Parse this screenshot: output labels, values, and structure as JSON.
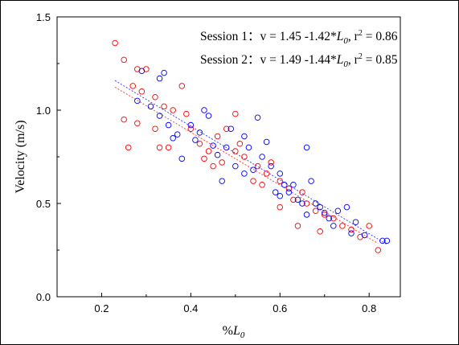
{
  "chart_data": {
    "type": "scatter",
    "xlabel": "%L0",
    "ylabel": "Velocity (m/s)",
    "xlim": [
      0.1,
      0.87
    ],
    "ylim": [
      0.0,
      1.5
    ],
    "x_ticks": [
      "0.2",
      "0.4",
      "0.6",
      "0.8"
    ],
    "y_ticks": [
      "0.0",
      "0.5",
      "1.0",
      "1.5"
    ],
    "grid": false,
    "annotations": [
      "Session 1：v = 1.45 -1.42*L0, r2 = 0.86",
      "Session 2：v = 1.49 -1.44*L0, r2 = 0.85"
    ],
    "series": [
      {
        "color": "#ff0000",
        "marker": "open-circle",
        "fit": {
          "intercept": 1.45,
          "slope": -1.42,
          "x_range": [
            0.23,
            0.82
          ]
        },
        "points": [
          [
            0.23,
            1.36
          ],
          [
            0.25,
            1.27
          ],
          [
            0.28,
            1.22
          ],
          [
            0.3,
            1.22
          ],
          [
            0.27,
            1.13
          ],
          [
            0.29,
            1.1
          ],
          [
            0.32,
            1.07
          ],
          [
            0.34,
            1.02
          ],
          [
            0.36,
            1.0
          ],
          [
            0.25,
            0.95
          ],
          [
            0.28,
            0.93
          ],
          [
            0.32,
            0.9
          ],
          [
            0.26,
            0.8
          ],
          [
            0.33,
            0.8
          ],
          [
            0.39,
            0.98
          ],
          [
            0.38,
            1.13
          ],
          [
            0.4,
            0.9
          ],
          [
            0.42,
            0.82
          ],
          [
            0.44,
            0.78
          ],
          [
            0.46,
            0.86
          ],
          [
            0.48,
            0.9
          ],
          [
            0.5,
            0.98
          ],
          [
            0.51,
            0.82
          ],
          [
            0.47,
            0.72
          ],
          [
            0.52,
            0.75
          ],
          [
            0.55,
            0.7
          ],
          [
            0.57,
            0.66
          ],
          [
            0.58,
            0.72
          ],
          [
            0.6,
            0.62
          ],
          [
            0.62,
            0.58
          ],
          [
            0.63,
            0.52
          ],
          [
            0.65,
            0.56
          ],
          [
            0.66,
            0.5
          ],
          [
            0.68,
            0.46
          ],
          [
            0.7,
            0.44
          ],
          [
            0.72,
            0.42
          ],
          [
            0.74,
            0.38
          ],
          [
            0.76,
            0.36
          ],
          [
            0.78,
            0.32
          ],
          [
            0.8,
            0.38
          ],
          [
            0.82,
            0.25
          ],
          [
            0.54,
            0.62
          ],
          [
            0.6,
            0.48
          ],
          [
            0.64,
            0.38
          ],
          [
            0.69,
            0.35
          ],
          [
            0.45,
            0.7
          ],
          [
            0.5,
            0.78
          ],
          [
            0.56,
            0.6
          ],
          [
            0.35,
            0.8
          ],
          [
            0.43,
            0.74
          ]
        ]
      },
      {
        "color": "#0000ff",
        "marker": "open-circle",
        "fit": {
          "intercept": 1.49,
          "slope": -1.44,
          "x_range": [
            0.23,
            0.84
          ]
        },
        "points": [
          [
            0.29,
            1.21
          ],
          [
            0.33,
            1.17
          ],
          [
            0.34,
            1.2
          ],
          [
            0.28,
            1.05
          ],
          [
            0.31,
            1.02
          ],
          [
            0.33,
            0.97
          ],
          [
            0.35,
            0.92
          ],
          [
            0.37,
            0.87
          ],
          [
            0.4,
            0.92
          ],
          [
            0.43,
            1.0
          ],
          [
            0.44,
            0.97
          ],
          [
            0.41,
            0.84
          ],
          [
            0.45,
            0.81
          ],
          [
            0.46,
            0.76
          ],
          [
            0.48,
            0.8
          ],
          [
            0.49,
            0.9
          ],
          [
            0.52,
            0.86
          ],
          [
            0.53,
            0.8
          ],
          [
            0.55,
            0.96
          ],
          [
            0.56,
            0.75
          ],
          [
            0.57,
            0.83
          ],
          [
            0.58,
            0.7
          ],
          [
            0.6,
            0.66
          ],
          [
            0.61,
            0.6
          ],
          [
            0.62,
            0.56
          ],
          [
            0.63,
            0.6
          ],
          [
            0.64,
            0.52
          ],
          [
            0.65,
            0.5
          ],
          [
            0.66,
            0.8
          ],
          [
            0.67,
            0.62
          ],
          [
            0.68,
            0.5
          ],
          [
            0.69,
            0.48
          ],
          [
            0.7,
            0.45
          ],
          [
            0.71,
            0.42
          ],
          [
            0.73,
            0.46
          ],
          [
            0.75,
            0.48
          ],
          [
            0.77,
            0.4
          ],
          [
            0.79,
            0.33
          ],
          [
            0.83,
            0.3
          ],
          [
            0.84,
            0.3
          ],
          [
            0.5,
            0.7
          ],
          [
            0.54,
            0.68
          ],
          [
            0.59,
            0.56
          ],
          [
            0.47,
            0.62
          ],
          [
            0.38,
            0.74
          ],
          [
            0.42,
            0.88
          ],
          [
            0.36,
            0.85
          ],
          [
            0.52,
            0.66
          ],
          [
            0.6,
            0.54
          ],
          [
            0.66,
            0.44
          ],
          [
            0.72,
            0.38
          ],
          [
            0.76,
            0.34
          ]
        ]
      }
    ]
  }
}
